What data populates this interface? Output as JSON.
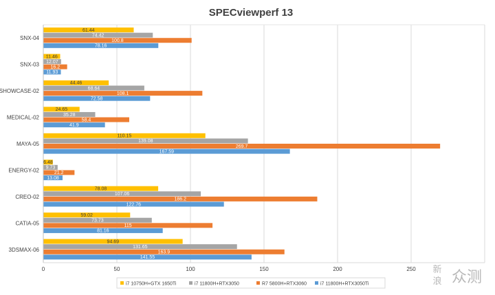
{
  "chart_data": {
    "type": "bar",
    "orientation": "horizontal",
    "title": "SPECviewperf 13",
    "categories": [
      "SNX-04",
      "SNX-03",
      "SHOWCASE-02",
      "MEDICAL-02",
      "MAYA-05",
      "ENERGY-02",
      "CREO-02",
      "CATIA-05",
      "3DSMAX-06"
    ],
    "series": [
      {
        "name": "i7 10750H+GTX 1650Ti",
        "color": "#ffc000",
        "values": [
          61.44,
          11.46,
          44.46,
          24.65,
          110.15,
          6.48,
          78.08,
          59.02,
          94.69
        ]
      },
      {
        "name": "i7 11800H+RTX3050",
        "color": "#a5a5a5",
        "values": [
          74.42,
          12.07,
          68.64,
          35.28,
          139.08,
          9.73,
          107.06,
          73.73,
          131.65
        ]
      },
      {
        "name": "R7 5800H+RTX3060",
        "color": "#ed7d31",
        "values": [
          100.8,
          16.2,
          108.1,
          58.4,
          269.7,
          21.2,
          186.2,
          115,
          163.9
        ]
      },
      {
        "name": "i7 11800H+RTX3050Ti",
        "color": "#5b9bd5",
        "values": [
          78.16,
          11.93,
          72.58,
          41.9,
          167.59,
          13.08,
          122.76,
          81.16,
          141.55
        ]
      }
    ],
    "data_labels": [
      [
        "61.44",
        "11.46",
        "44.46",
        "24.65",
        "110.15",
        "6.48",
        "78.08",
        "59.02",
        "94.69"
      ],
      [
        "74.42",
        "12.07",
        "68.64",
        "35.28",
        "139.08",
        "9.73",
        "107.06",
        "73.73",
        "131.65"
      ],
      [
        "100.8",
        "16.2",
        "108.1",
        "58.4",
        "269.7",
        "21.2",
        "186.2",
        "115",
        "163.9"
      ],
      [
        "78.16",
        "11.93",
        "72.58",
        "41.9",
        "167.59",
        "13.08",
        "122.76",
        "81.16",
        "141.55"
      ]
    ],
    "xlim": [
      0,
      300
    ],
    "xticks": [
      0,
      50,
      100,
      150,
      200,
      250
    ],
    "xtick_labels": [
      "0",
      "50",
      "100",
      "150",
      "200",
      "250"
    ],
    "grid": "vertical",
    "legend_position": "bottom"
  },
  "watermark": {
    "line1": "新",
    "line2": "浪",
    "text": "众测"
  }
}
